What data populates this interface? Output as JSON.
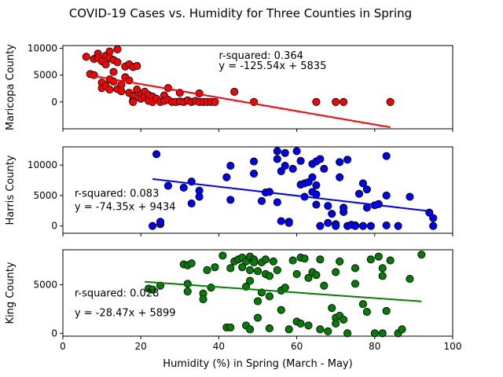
{
  "figure": {
    "title": "COVID-19 Cases vs. Humidity for Three Counties in Spring",
    "xlabel": "Humidity (%) in Spring (March - May)"
  },
  "chart_data": [
    {
      "type": "scatter",
      "ylabel": "Maricopa County",
      "xlim": [
        0,
        100
      ],
      "ylim": [
        -5000,
        10500
      ],
      "yticks": [
        0,
        5000,
        10000
      ],
      "xticks": [
        0,
        20,
        40,
        60,
        80,
        100
      ],
      "marker_color": "#ff0000",
      "line_color": "#ff0000",
      "annotation": {
        "line1": "r-squared: 0.364",
        "line2": "y = -125.54x + 5835",
        "x": 40,
        "y1": 8600,
        "y2": 6700
      },
      "regression": {
        "slope": -125.54,
        "intercept": 5835,
        "x_range": [
          6,
          84
        ]
      },
      "points": [
        [
          6,
          8400
        ],
        [
          7,
          5200
        ],
        [
          8,
          8000
        ],
        [
          8,
          5000
        ],
        [
          9,
          9000
        ],
        [
          9,
          8200
        ],
        [
          10,
          7600
        ],
        [
          10,
          3600
        ],
        [
          10,
          2600
        ],
        [
          11,
          8600
        ],
        [
          11,
          7000
        ],
        [
          11,
          3000
        ],
        [
          12,
          9400
        ],
        [
          12,
          8200
        ],
        [
          12,
          4200
        ],
        [
          12,
          2300
        ],
        [
          13,
          7800
        ],
        [
          13,
          5600
        ],
        [
          13,
          3800
        ],
        [
          14,
          9800
        ],
        [
          14,
          7400
        ],
        [
          14,
          2400
        ],
        [
          15,
          3200
        ],
        [
          15,
          2000
        ],
        [
          16,
          6600
        ],
        [
          16,
          4600
        ],
        [
          17,
          7000
        ],
        [
          17,
          4000
        ],
        [
          17,
          1700
        ],
        [
          18,
          6500
        ],
        [
          18,
          1100
        ],
        [
          18,
          200
        ],
        [
          18,
          0
        ],
        [
          19,
          6700
        ],
        [
          19,
          2300
        ],
        [
          20,
          1400
        ],
        [
          20,
          600
        ],
        [
          21,
          1900
        ],
        [
          21,
          900
        ],
        [
          22,
          1300
        ],
        [
          22,
          200
        ],
        [
          23,
          1000
        ],
        [
          23,
          0
        ],
        [
          24,
          600
        ],
        [
          25,
          0
        ],
        [
          26,
          1200
        ],
        [
          26,
          200
        ],
        [
          27,
          2600
        ],
        [
          27,
          400
        ],
        [
          28,
          0
        ],
        [
          29,
          0
        ],
        [
          30,
          100
        ],
        [
          30,
          1700
        ],
        [
          31,
          0
        ],
        [
          32,
          300
        ],
        [
          33,
          0
        ],
        [
          34,
          200
        ],
        [
          35,
          1600
        ],
        [
          35,
          0
        ],
        [
          36,
          0
        ],
        [
          37,
          0
        ],
        [
          38,
          0
        ],
        [
          39,
          0
        ],
        [
          44,
          1900
        ],
        [
          49,
          0
        ],
        [
          65,
          0
        ],
        [
          70,
          0
        ],
        [
          72,
          0
        ],
        [
          84,
          0
        ]
      ]
    },
    {
      "type": "scatter",
      "ylabel": "Harris County",
      "xlim": [
        0,
        100
      ],
      "ylim": [
        -1200,
        13000
      ],
      "yticks": [
        0,
        5000,
        10000
      ],
      "xticks": [
        0,
        20,
        40,
        60,
        80,
        100
      ],
      "marker_color": "#0000ff",
      "line_color": "#0000ff",
      "annotation": {
        "line1": "r-squared: 0.083",
        "line2": "y = -74.35x + 9434",
        "x": 3,
        "y1": 5300,
        "y2": 3100
      },
      "regression": {
        "slope": -74.35,
        "intercept": 9434,
        "x_range": [
          23,
          94
        ]
      },
      "points": [
        [
          23,
          0
        ],
        [
          24,
          11800
        ],
        [
          25,
          300
        ],
        [
          25,
          700
        ],
        [
          27,
          6600
        ],
        [
          31,
          6300
        ],
        [
          33,
          7300
        ],
        [
          33,
          3700
        ],
        [
          35,
          5800
        ],
        [
          35,
          4800
        ],
        [
          42,
          8000
        ],
        [
          43,
          9900
        ],
        [
          43,
          4300
        ],
        [
          49,
          8600
        ],
        [
          49,
          10600
        ],
        [
          51,
          4100
        ],
        [
          52,
          5500
        ],
        [
          53,
          5600
        ],
        [
          55,
          3900
        ],
        [
          55,
          12300
        ],
        [
          55,
          11000
        ],
        [
          56,
          800
        ],
        [
          56,
          9000
        ],
        [
          57,
          9900
        ],
        [
          57,
          12000
        ],
        [
          58,
          700
        ],
        [
          58,
          500
        ],
        [
          59,
          9400
        ],
        [
          60,
          12300
        ],
        [
          61,
          6800
        ],
        [
          61,
          10700
        ],
        [
          62,
          7000
        ],
        [
          62,
          4800
        ],
        [
          63,
          7200
        ],
        [
          64,
          10200
        ],
        [
          64,
          8000
        ],
        [
          64,
          5600
        ],
        [
          65,
          10600
        ],
        [
          65,
          6700
        ],
        [
          65,
          3500
        ],
        [
          65,
          5200
        ],
        [
          66,
          11000
        ],
        [
          66,
          0
        ],
        [
          67,
          9400
        ],
        [
          68,
          500
        ],
        [
          68,
          3300
        ],
        [
          69,
          2000
        ],
        [
          70,
          300
        ],
        [
          70,
          0
        ],
        [
          71,
          10500
        ],
        [
          71,
          8000
        ],
        [
          72,
          2300
        ],
        [
          72,
          3000
        ],
        [
          73,
          10900
        ],
        [
          73,
          0
        ],
        [
          74,
          200
        ],
        [
          75,
          100
        ],
        [
          75,
          0
        ],
        [
          76,
          5300
        ],
        [
          77,
          7000
        ],
        [
          77,
          0
        ],
        [
          78,
          6000
        ],
        [
          78,
          3000
        ],
        [
          79,
          0
        ],
        [
          80,
          3400
        ],
        [
          81,
          3600
        ],
        [
          83,
          11500
        ],
        [
          83,
          5000
        ],
        [
          83,
          100
        ],
        [
          86,
          0
        ],
        [
          89,
          4800
        ],
        [
          94,
          2200
        ],
        [
          95,
          1300
        ],
        [
          95,
          0
        ]
      ]
    },
    {
      "type": "scatter",
      "ylabel": "King County",
      "xlim": [
        0,
        100
      ],
      "ylim": [
        -300,
        8600
      ],
      "yticks": [
        0,
        5000
      ],
      "xticks": [
        0,
        20,
        40,
        60,
        80,
        100
      ],
      "marker_color": "#008000",
      "line_color": "#008000",
      "annotation": {
        "line1": "r-squared: 0.028",
        "line2": "y = -28.47x + 5899",
        "x": 3,
        "y1": 4100,
        "y2": 2100
      },
      "regression": {
        "slope": -28.47,
        "intercept": 5899,
        "x_range": [
          21,
          92
        ]
      },
      "points": [
        [
          22,
          4600
        ],
        [
          23,
          4500
        ],
        [
          25,
          4900
        ],
        [
          31,
          7100
        ],
        [
          32,
          5100
        ],
        [
          32,
          4300
        ],
        [
          32,
          7000
        ],
        [
          33,
          7200
        ],
        [
          36,
          4100
        ],
        [
          36,
          3500
        ],
        [
          37,
          6500
        ],
        [
          38,
          4700
        ],
        [
          39,
          6800
        ],
        [
          41,
          8000
        ],
        [
          42,
          600
        ],
        [
          43,
          600
        ],
        [
          43,
          6700
        ],
        [
          44,
          7400
        ],
        [
          45,
          7600
        ],
        [
          46,
          7800
        ],
        [
          46,
          6800
        ],
        [
          47,
          7400
        ],
        [
          47,
          800
        ],
        [
          47,
          4800
        ],
        [
          48,
          7900
        ],
        [
          48,
          6500
        ],
        [
          48,
          5400
        ],
        [
          48,
          400
        ],
        [
          49,
          7600
        ],
        [
          49,
          7300
        ],
        [
          50,
          3300
        ],
        [
          50,
          1600
        ],
        [
          50,
          6400
        ],
        [
          51,
          7300
        ],
        [
          51,
          4200
        ],
        [
          52,
          6100
        ],
        [
          52,
          7600
        ],
        [
          53,
          3800
        ],
        [
          53,
          5900
        ],
        [
          53,
          500
        ],
        [
          54,
          7400
        ],
        [
          55,
          6500
        ],
        [
          56,
          4400
        ],
        [
          56,
          2400
        ],
        [
          57,
          4700
        ],
        [
          58,
          400
        ],
        [
          59,
          7500
        ],
        [
          60,
          6100
        ],
        [
          60,
          1200
        ],
        [
          61,
          7800
        ],
        [
          61,
          1000
        ],
        [
          62,
          7700
        ],
        [
          63,
          800
        ],
        [
          63,
          5700
        ],
        [
          64,
          6300
        ],
        [
          65,
          6000
        ],
        [
          66,
          7600
        ],
        [
          66,
          400
        ],
        [
          67,
          4900
        ],
        [
          68,
          200
        ],
        [
          69,
          2600
        ],
        [
          70,
          6300
        ],
        [
          70,
          1600
        ],
        [
          70,
          1000
        ],
        [
          71,
          1800
        ],
        [
          71,
          7400
        ],
        [
          72,
          1400
        ],
        [
          73,
          0
        ],
        [
          75,
          6700
        ],
        [
          75,
          5100
        ],
        [
          77,
          3000
        ],
        [
          78,
          2200
        ],
        [
          79,
          7600
        ],
        [
          80,
          0
        ],
        [
          81,
          7900
        ],
        [
          82,
          6700
        ],
        [
          82,
          5900
        ],
        [
          82,
          0
        ],
        [
          83,
          2300
        ],
        [
          84,
          7500
        ],
        [
          86,
          0
        ],
        [
          87,
          400
        ],
        [
          89,
          5600
        ],
        [
          92,
          8100
        ]
      ]
    }
  ]
}
